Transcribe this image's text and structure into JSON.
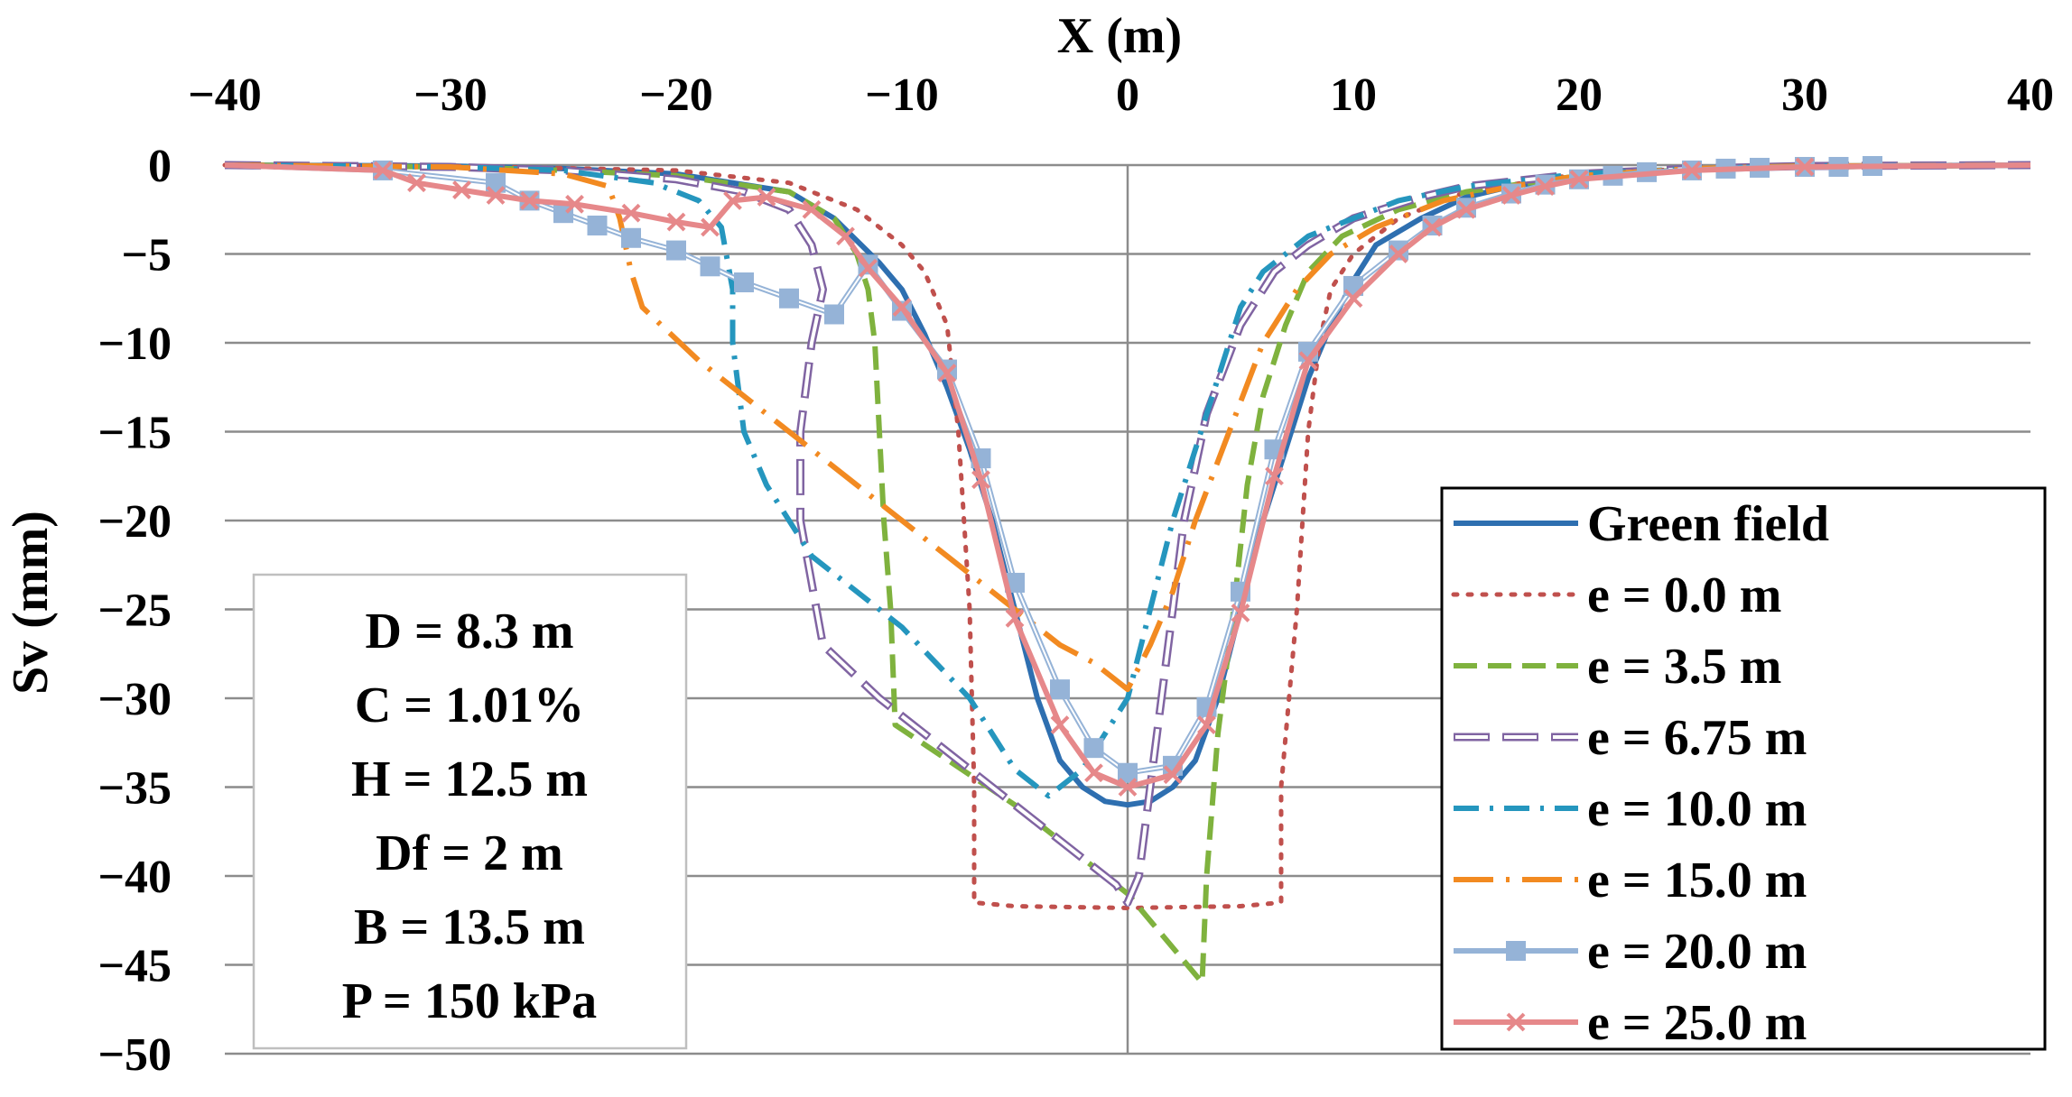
{
  "chart_data": {
    "type": "line",
    "xlabel": "X (m)",
    "ylabel": "Sv (mm)",
    "xlim": [
      -40,
      40
    ],
    "ylim": [
      -50,
      0
    ],
    "x_ticks": [
      "−40",
      "−30",
      "−20",
      "−10",
      "0",
      "10",
      "20",
      "30",
      "40"
    ],
    "y_ticks": [
      "0",
      "−5",
      "−10",
      "−15",
      "−20",
      "−25",
      "−30",
      "−35",
      "−40",
      "−45",
      "−50"
    ],
    "x_axis_position": "top",
    "grid": "horizontal",
    "legend_position": "bottom-right",
    "info_box": [
      "D = 8.3 m",
      "C = 1.01%",
      "H = 12.5 m",
      "Df = 2 m",
      "B = 13.5 m",
      "P = 150 kPa"
    ],
    "series": [
      {
        "name": "Green field",
        "color": "#2e6fb0",
        "dash": "solid",
        "marker": "none",
        "points": [
          [
            -40,
            0
          ],
          [
            -30,
            -0.05
          ],
          [
            -25,
            -0.2
          ],
          [
            -20,
            -0.5
          ],
          [
            -15,
            -1.5
          ],
          [
            -13,
            -3
          ],
          [
            -11,
            -5.5
          ],
          [
            -10,
            -7
          ],
          [
            -9,
            -9.5
          ],
          [
            -8,
            -12.5
          ],
          [
            -7,
            -16
          ],
          [
            -6,
            -20
          ],
          [
            -5,
            -25
          ],
          [
            -4,
            -30
          ],
          [
            -3,
            -33.5
          ],
          [
            -2,
            -35
          ],
          [
            -1,
            -35.8
          ],
          [
            0,
            -36
          ],
          [
            1,
            -35.8
          ],
          [
            2,
            -35
          ],
          [
            3,
            -33.5
          ],
          [
            4,
            -30
          ],
          [
            5,
            -25
          ],
          [
            6,
            -20
          ],
          [
            7,
            -16
          ],
          [
            8,
            -12
          ],
          [
            9,
            -9
          ],
          [
            10,
            -6.5
          ],
          [
            11,
            -4.5
          ],
          [
            13,
            -3
          ],
          [
            15,
            -1.8
          ],
          [
            17,
            -1.2
          ],
          [
            20,
            -0.6
          ],
          [
            25,
            -0.25
          ],
          [
            30,
            -0.1
          ],
          [
            40,
            0
          ]
        ]
      },
      {
        "name": "e = 0.0 m",
        "color": "#c0504d",
        "dash": "dot",
        "marker": "none",
        "points": [
          [
            -40,
            0
          ],
          [
            -30,
            -0.05
          ],
          [
            -20,
            -0.3
          ],
          [
            -15,
            -1
          ],
          [
            -12,
            -2.5
          ],
          [
            -10,
            -4.5
          ],
          [
            -9,
            -6
          ],
          [
            -8,
            -9
          ],
          [
            -7.5,
            -15
          ],
          [
            -7,
            -25
          ],
          [
            -6.8,
            -35
          ],
          [
            -6.8,
            -41.5
          ],
          [
            -5,
            -41.7
          ],
          [
            0,
            -41.8
          ],
          [
            5,
            -41.7
          ],
          [
            6.8,
            -41.5
          ],
          [
            6.8,
            -35
          ],
          [
            7.5,
            -25
          ],
          [
            8,
            -15
          ],
          [
            8.5,
            -10
          ],
          [
            9,
            -7
          ],
          [
            10,
            -5
          ],
          [
            12,
            -3
          ],
          [
            15,
            -1.5
          ],
          [
            20,
            -0.5
          ],
          [
            25,
            -0.2
          ],
          [
            30,
            -0.05
          ],
          [
            40,
            0
          ]
        ]
      },
      {
        "name": "e = 3.5 m",
        "color": "#7fb23e",
        "dash": "dash",
        "marker": "none",
        "points": [
          [
            -40,
            0
          ],
          [
            -30,
            -0.1
          ],
          [
            -25,
            -0.3
          ],
          [
            -20,
            -0.6
          ],
          [
            -15,
            -1.5
          ],
          [
            -13,
            -3
          ],
          [
            -12,
            -5
          ],
          [
            -11.5,
            -7
          ],
          [
            -11.2,
            -10
          ],
          [
            -11,
            -15
          ],
          [
            -10.8,
            -20
          ],
          [
            -10.5,
            -25
          ],
          [
            -10.3,
            -31.5
          ],
          [
            -5,
            -36
          ],
          [
            0,
            -41
          ],
          [
            3.3,
            -46
          ],
          [
            3.5,
            -40
          ],
          [
            4,
            -32
          ],
          [
            4.7,
            -25
          ],
          [
            5.3,
            -18
          ],
          [
            6,
            -13
          ],
          [
            7,
            -9
          ],
          [
            8,
            -6
          ],
          [
            9.5,
            -4
          ],
          [
            12,
            -2.5
          ],
          [
            15,
            -1.5
          ],
          [
            20,
            -0.6
          ],
          [
            25,
            -0.25
          ],
          [
            30,
            -0.1
          ],
          [
            40,
            0
          ]
        ]
      },
      {
        "name": "e = 6.75 m",
        "color": "#8064a2",
        "dash": "longdash",
        "marker": "none",
        "points": [
          [
            -40,
            0
          ],
          [
            -30,
            -0.1
          ],
          [
            -25,
            -0.3
          ],
          [
            -20,
            -0.8
          ],
          [
            -17,
            -1.5
          ],
          [
            -15,
            -2.5
          ],
          [
            -14,
            -4.5
          ],
          [
            -13.5,
            -7
          ],
          [
            -14,
            -10
          ],
          [
            -14.5,
            -15
          ],
          [
            -14.5,
            -20
          ],
          [
            -13.5,
            -27
          ],
          [
            -11,
            -30
          ],
          [
            -7,
            -34
          ],
          [
            -3,
            -38
          ],
          [
            -0.5,
            -40.5
          ],
          [
            0,
            -41.5
          ],
          [
            0.5,
            -40
          ],
          [
            1.5,
            -30
          ],
          [
            2.5,
            -20
          ],
          [
            3.5,
            -14
          ],
          [
            5,
            -9
          ],
          [
            6.5,
            -6
          ],
          [
            8,
            -4.5
          ],
          [
            10,
            -3
          ],
          [
            13,
            -1.8
          ],
          [
            15,
            -1.2
          ],
          [
            20,
            -0.5
          ],
          [
            25,
            -0.2
          ],
          [
            30,
            -0.05
          ],
          [
            40,
            0
          ]
        ]
      },
      {
        "name": "e = 10.0 m",
        "color": "#2596be",
        "dash": "dashdot",
        "marker": "none",
        "points": [
          [
            -40,
            0
          ],
          [
            -30,
            -0.1
          ],
          [
            -25,
            -0.3
          ],
          [
            -21,
            -1
          ],
          [
            -19,
            -2
          ],
          [
            -18,
            -3.5
          ],
          [
            -17.5,
            -7
          ],
          [
            -17.5,
            -10
          ],
          [
            -17,
            -15
          ],
          [
            -16,
            -18
          ],
          [
            -14,
            -22
          ],
          [
            -10,
            -26
          ],
          [
            -7,
            -30
          ],
          [
            -5,
            -34
          ],
          [
            -3.5,
            -35.5
          ],
          [
            -2,
            -34
          ],
          [
            0,
            -30
          ],
          [
            1,
            -25
          ],
          [
            2,
            -20
          ],
          [
            3,
            -16
          ],
          [
            4,
            -12
          ],
          [
            5,
            -8
          ],
          [
            6,
            -6
          ],
          [
            8,
            -4
          ],
          [
            10,
            -3
          ],
          [
            12,
            -2
          ],
          [
            15,
            -1.2
          ],
          [
            20,
            -0.5
          ],
          [
            25,
            -0.2
          ],
          [
            30,
            -0.05
          ],
          [
            40,
            0
          ]
        ]
      },
      {
        "name": "e = 15.0 m",
        "color": "#f28a21",
        "dash": "dashdotlong",
        "marker": "none",
        "points": [
          [
            -40,
            0
          ],
          [
            -30,
            -0.1
          ],
          [
            -25,
            -0.5
          ],
          [
            -23,
            -1.2
          ],
          [
            -22.5,
            -3
          ],
          [
            -22,
            -6
          ],
          [
            -21.5,
            -8
          ],
          [
            -19,
            -11
          ],
          [
            -15,
            -15
          ],
          [
            -12,
            -18
          ],
          [
            -8,
            -22
          ],
          [
            -5,
            -25
          ],
          [
            -3,
            -27
          ],
          [
            -1.5,
            -28
          ],
          [
            0,
            -29.5
          ],
          [
            1,
            -27
          ],
          [
            2,
            -24
          ],
          [
            3,
            -20
          ],
          [
            4.5,
            -15
          ],
          [
            6,
            -10
          ],
          [
            7.5,
            -7
          ],
          [
            9,
            -5
          ],
          [
            11,
            -3.5
          ],
          [
            14,
            -2
          ],
          [
            17,
            -1.2
          ],
          [
            20,
            -0.6
          ],
          [
            25,
            -0.2
          ],
          [
            30,
            -0.05
          ],
          [
            40,
            0
          ]
        ]
      },
      {
        "name": "e = 20.0 m",
        "color": "#95b3d7",
        "dash": "solid",
        "marker": "square",
        "points": [
          [
            -40,
            0
          ],
          [
            -33,
            -0.3
          ],
          [
            -28,
            -1
          ],
          [
            -26.5,
            -2
          ],
          [
            -25,
            -2.7
          ],
          [
            -23.5,
            -3.4
          ],
          [
            -22,
            -4.1
          ],
          [
            -20,
            -4.8
          ],
          [
            -18.5,
            -5.7
          ],
          [
            -17,
            -6.6
          ],
          [
            -15,
            -7.5
          ],
          [
            -13,
            -8.4
          ],
          [
            -11.5,
            -5.6
          ],
          [
            -10,
            -8.2
          ],
          [
            -8,
            -11.5
          ],
          [
            -6.5,
            -16.5
          ],
          [
            -5,
            -23.5
          ],
          [
            -3,
            -29.5
          ],
          [
            -1.5,
            -32.8
          ],
          [
            0,
            -34.2
          ],
          [
            2,
            -33.8
          ],
          [
            3.5,
            -30.5
          ],
          [
            5,
            -24
          ],
          [
            6.5,
            -16
          ],
          [
            8,
            -10.5
          ],
          [
            10,
            -6.8
          ],
          [
            12,
            -4.8
          ],
          [
            13.5,
            -3.4
          ],
          [
            15,
            -2.4
          ],
          [
            17,
            -1.6
          ],
          [
            18.5,
            -1.1
          ],
          [
            20,
            -0.8
          ],
          [
            21.5,
            -0.6
          ],
          [
            23,
            -0.4
          ],
          [
            25,
            -0.3
          ],
          [
            26.5,
            -0.2
          ],
          [
            28,
            -0.15
          ],
          [
            30,
            -0.1
          ],
          [
            31.5,
            -0.1
          ],
          [
            33,
            -0.05
          ],
          [
            40,
            0
          ]
        ]
      },
      {
        "name": "e = 25.0 m",
        "color": "#e6888a",
        "dash": "solid",
        "marker": "x",
        "points": [
          [
            -40,
            0
          ],
          [
            -33,
            -0.3
          ],
          [
            -31.5,
            -1
          ],
          [
            -29.5,
            -1.4
          ],
          [
            -28,
            -1.7
          ],
          [
            -26.5,
            -2
          ],
          [
            -24.5,
            -2.2
          ],
          [
            -22,
            -2.7
          ],
          [
            -20,
            -3.2
          ],
          [
            -18.5,
            -3.5
          ],
          [
            -17.5,
            -2
          ],
          [
            -16,
            -1.8
          ],
          [
            -14,
            -2.5
          ],
          [
            -12.5,
            -4
          ],
          [
            -11.5,
            -5.8
          ],
          [
            -10,
            -8
          ],
          [
            -8,
            -11.7
          ],
          [
            -6.5,
            -17.7
          ],
          [
            -5,
            -25.5
          ],
          [
            -3,
            -31.5
          ],
          [
            -1.5,
            -34.2
          ],
          [
            0,
            -35
          ],
          [
            2,
            -34.3
          ],
          [
            3.5,
            -31.5
          ],
          [
            5,
            -25.2
          ],
          [
            6.5,
            -17.5
          ],
          [
            8,
            -11
          ],
          [
            10,
            -7.5
          ],
          [
            12,
            -5
          ],
          [
            13.5,
            -3.5
          ],
          [
            15,
            -2.5
          ],
          [
            17,
            -1.7
          ],
          [
            18.5,
            -1.2
          ],
          [
            20,
            -0.8
          ],
          [
            25,
            -0.3
          ],
          [
            30,
            -0.1
          ],
          [
            40,
            0
          ]
        ]
      }
    ]
  }
}
